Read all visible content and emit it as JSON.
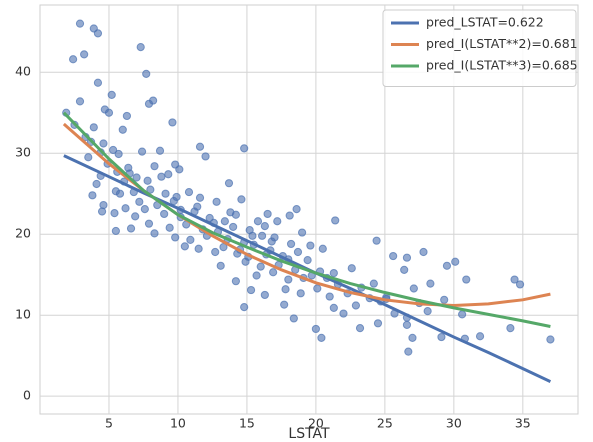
{
  "chart_data": {
    "type": "scatter",
    "xlabel": "LSTAT",
    "xlim": [
      0,
      39
    ],
    "ylim": [
      -2.2,
      48.3
    ],
    "xticks": [
      5,
      10,
      15,
      20,
      25,
      30,
      35
    ],
    "yticks": [
      0,
      10,
      20,
      30,
      40
    ],
    "grid": true,
    "legend": "upper right",
    "scatter": {
      "color": "#4c72b0",
      "x": [
        2.9,
        3.9,
        4.2,
        2.4,
        3.2,
        4.2,
        7.3,
        7.7,
        8.2,
        7.9,
        2.9,
        5.2,
        4.7,
        5.0,
        6.3,
        9.6,
        6.0,
        3.9,
        2.5,
        1.9,
        3.3,
        4.6,
        14.8,
        11.6,
        12.0,
        7.4,
        8.7,
        9.8,
        5.7,
        5.3,
        3.5,
        4.9,
        6.4,
        7.0,
        9.3,
        10.1,
        8.8,
        6.1,
        4.4,
        5.5,
        3.8,
        6.8,
        8.0,
        9.9,
        10.8,
        11.6,
        13.7,
        12.8,
        14.6,
        7.2,
        8.5,
        6.2,
        4.5,
        5.4,
        6.9,
        9.0,
        10.2,
        11.2,
        12.3,
        13.4,
        14.2,
        15.8,
        16.5,
        18.1,
        18.6,
        17.2,
        19.0,
        21.4,
        7.9,
        9.4,
        10.6,
        11.8,
        12.9,
        14.0,
        15.2,
        16.1,
        17.0,
        8.3,
        9.8,
        10.9,
        12.1,
        13.6,
        14.8,
        15.5,
        16.8,
        18.2,
        19.6,
        10.5,
        11.5,
        12.7,
        14.3,
        15.1,
        16.4,
        17.6,
        18.7,
        20.5,
        13.1,
        14.9,
        16.0,
        17.3,
        18.5,
        19.4,
        20.3,
        22.6,
        15.7,
        16.9,
        18.0,
        19.1,
        20.8,
        21.6,
        14.2,
        15.3,
        17.8,
        18.9,
        20.1,
        21.0,
        22.3,
        23.3,
        24.2,
        25.1,
        16.3,
        14.8,
        17.7,
        18.4,
        20.0,
        20.4,
        21.3,
        22.0,
        23.2,
        24.5,
        25.7,
        26.6,
        26.6,
        27.0,
        26.7,
        29.1,
        30.6,
        30.8,
        31.9,
        34.1,
        37.0,
        24.4,
        25.6,
        26.6,
        26.4,
        27.8,
        29.5,
        30.1,
        30.9,
        34.4,
        34.8,
        28.3,
        27.1,
        29.3,
        28.1,
        25.1,
        23.9,
        24.7,
        27.5,
        22.9,
        5.8,
        4.1,
        7.6,
        6.6,
        5.5,
        4.6,
        9.1,
        9.7,
        11.4,
        10.2,
        12.6,
        13.8,
        15.4,
        16.3,
        13.3,
        14.5,
        16.7,
        18.0,
        19.7,
        21.3,
        3.7,
        4.4,
        5.6,
        6.5,
        7.8,
        8.3
      ],
      "y": [
        46,
        45.4,
        44.8,
        41.6,
        42.2,
        38.7,
        43.1,
        39.8,
        36.5,
        36.1,
        36.4,
        37.2,
        35.4,
        35.0,
        34.6,
        33.8,
        32.9,
        33.2,
        33.5,
        35.0,
        32.0,
        31.2,
        30.6,
        30.8,
        29.6,
        30.2,
        30.3,
        28.6,
        29.9,
        30.4,
        29.5,
        28.7,
        28.2,
        27.0,
        27.4,
        28.0,
        27.1,
        26.5,
        27.2,
        25.3,
        24.8,
        25.2,
        25.5,
        24.6,
        25.2,
        24.5,
        26.3,
        24.0,
        24.3,
        24.0,
        23.6,
        23.2,
        22.8,
        22.6,
        22.2,
        22.5,
        23.0,
        22.8,
        22.0,
        21.6,
        22.4,
        21.6,
        22.5,
        22.3,
        23.1,
        21.6,
        20.2,
        21.7,
        21.3,
        20.8,
        21.2,
        20.6,
        20.3,
        20.9,
        20.5,
        19.8,
        19.6,
        20.1,
        19.6,
        19.3,
        19.8,
        19.4,
        19.0,
        18.7,
        19.1,
        18.8,
        18.6,
        18.5,
        18.2,
        17.8,
        17.6,
        17.2,
        17.5,
        17.3,
        17.8,
        18.2,
        16.1,
        16.6,
        16.0,
        16.2,
        15.6,
        16.8,
        15.4,
        15.8,
        14.9,
        15.3,
        14.4,
        14.6,
        14.6,
        13.8,
        14.2,
        13.1,
        13.2,
        12.7,
        13.3,
        12.3,
        12.7,
        13.4,
        13.9,
        12.2,
        12.5,
        11.0,
        11.3,
        9.6,
        8.3,
        7.2,
        10.9,
        10.2,
        8.4,
        9.0,
        10.2,
        9.7,
        8.8,
        7.2,
        5.5,
        7.3,
        10.1,
        7.1,
        7.4,
        8.4,
        7.0,
        19.2,
        17.3,
        17.1,
        15.6,
        17.8,
        16.1,
        16.6,
        14.4,
        14.4,
        13.8,
        13.9,
        13.3,
        11.9,
        10.5,
        12.0,
        12.1,
        11.7,
        11.5,
        11.2,
        25.0,
        26.2,
        23.1,
        20.7,
        20.4,
        23.6,
        25.0,
        24.1,
        23.4,
        22.1,
        21.4,
        22.7,
        19.8,
        21.0,
        18.4,
        18.1,
        18.0,
        16.9,
        14.9,
        15.2,
        31.4,
        30.1,
        27.7,
        27.5,
        26.6,
        28.4
      ]
    },
    "lines": {
      "x": [
        1.73,
        5,
        7.5,
        10,
        12.5,
        15,
        17.5,
        20,
        22.5,
        25,
        27.5,
        30,
        32.5,
        35,
        37
      ],
      "series": [
        {
          "name": "pred_LSTAT=0.622",
          "color": "#4c72b0",
          "values": [
            29.7,
            27.1,
            25.1,
            23.2,
            21.2,
            19.2,
            17.2,
            15.2,
            13.3,
            11.3,
            9.3,
            7.3,
            5.4,
            3.4,
            1.8
          ]
        },
        {
          "name": "pred_I(LSTAT**2)=0.681",
          "color": "#dd8452",
          "values": [
            33.6,
            28.7,
            25.4,
            22.4,
            19.8,
            17.5,
            15.6,
            14.0,
            12.8,
            11.9,
            11.4,
            11.2,
            11.4,
            11.9,
            12.6
          ]
        },
        {
          "name": "pred_I(LSTAT**3)=0.685",
          "color": "#55a868",
          "values": [
            35.0,
            29.3,
            25.4,
            22.4,
            20.2,
            18.4,
            16.7,
            15.2,
            13.9,
            12.8,
            11.8,
            10.9,
            10.1,
            9.3,
            8.6
          ]
        }
      ]
    }
  }
}
